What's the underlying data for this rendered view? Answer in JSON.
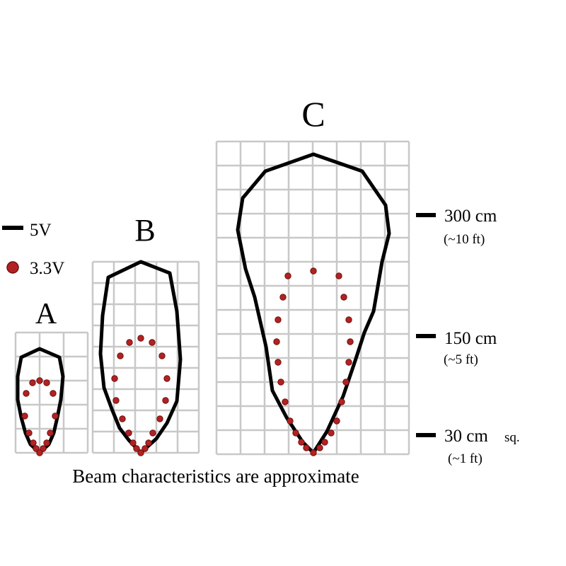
{
  "legend": {
    "items": [
      {
        "symbol": "line",
        "label": "5V",
        "color": "#000000"
      },
      {
        "symbol": "dot",
        "label": "3.3V",
        "color": "#b22222"
      }
    ]
  },
  "panels": [
    {
      "label": "A"
    },
    {
      "label": "B"
    },
    {
      "label": "C"
    }
  ],
  "scale": [
    {
      "value": "300 cm",
      "sub": "(~10 ft)"
    },
    {
      "value": "150 cm",
      "sub": "(~5 ft)"
    },
    {
      "value": "30 cm",
      "unit": "sq.",
      "sub": "(~1 ft)"
    }
  ],
  "caption": "Beam characteristics are approximate",
  "colors": {
    "grid": "#c8c8c8",
    "beam_5v": "#000000",
    "beam_3v3_fill": "#b22222",
    "beam_3v3_stroke": "#6e1010"
  }
}
